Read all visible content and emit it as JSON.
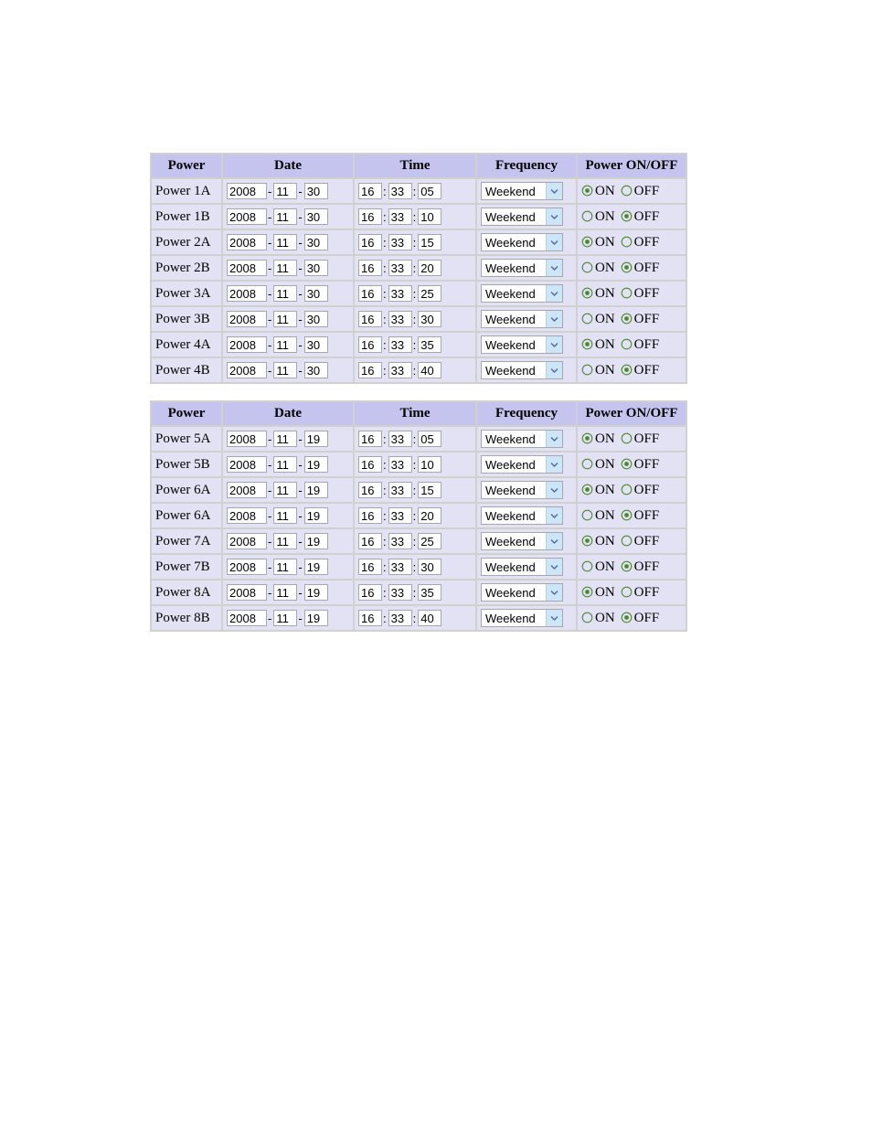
{
  "colors": {
    "header_bg": "#c5c4ee",
    "row_bg": "#e3e2f4",
    "table_border": "#d0d0cf",
    "input_border": "#a7a6aa",
    "select_button_bg": "#cde6f7",
    "radio_color": "#4a8a30",
    "page_bg": "#ffffff"
  },
  "headers": {
    "power": "Power",
    "date": "Date",
    "time": "Time",
    "frequency": "Frequency",
    "onoff": "Power ON/OFF"
  },
  "labels": {
    "on": "ON",
    "off": "OFF",
    "date_sep": "-",
    "time_sep": ":"
  },
  "frequency_selected": "Weekend",
  "tables": [
    {
      "rows": [
        {
          "name": "Power 1A",
          "year": "2008",
          "month": "11",
          "day": "30",
          "hh": "16",
          "mm": "33",
          "ss": "05",
          "freq": "Weekend",
          "state": "ON"
        },
        {
          "name": "Power 1B",
          "year": "2008",
          "month": "11",
          "day": "30",
          "hh": "16",
          "mm": "33",
          "ss": "10",
          "freq": "Weekend",
          "state": "OFF"
        },
        {
          "name": "Power 2A",
          "year": "2008",
          "month": "11",
          "day": "30",
          "hh": "16",
          "mm": "33",
          "ss": "15",
          "freq": "Weekend",
          "state": "ON"
        },
        {
          "name": "Power 2B",
          "year": "2008",
          "month": "11",
          "day": "30",
          "hh": "16",
          "mm": "33",
          "ss": "20",
          "freq": "Weekend",
          "state": "OFF"
        },
        {
          "name": "Power 3A",
          "year": "2008",
          "month": "11",
          "day": "30",
          "hh": "16",
          "mm": "33",
          "ss": "25",
          "freq": "Weekend",
          "state": "ON"
        },
        {
          "name": "Power 3B",
          "year": "2008",
          "month": "11",
          "day": "30",
          "hh": "16",
          "mm": "33",
          "ss": "30",
          "freq": "Weekend",
          "state": "OFF"
        },
        {
          "name": "Power 4A",
          "year": "2008",
          "month": "11",
          "day": "30",
          "hh": "16",
          "mm": "33",
          "ss": "35",
          "freq": "Weekend",
          "state": "ON"
        },
        {
          "name": "Power 4B",
          "year": "2008",
          "month": "11",
          "day": "30",
          "hh": "16",
          "mm": "33",
          "ss": "40",
          "freq": "Weekend",
          "state": "OFF"
        }
      ]
    },
    {
      "rows": [
        {
          "name": "Power 5A",
          "year": "2008",
          "month": "11",
          "day": "19",
          "hh": "16",
          "mm": "33",
          "ss": "05",
          "freq": "Weekend",
          "state": "ON"
        },
        {
          "name": "Power 5B",
          "year": "2008",
          "month": "11",
          "day": "19",
          "hh": "16",
          "mm": "33",
          "ss": "10",
          "freq": "Weekend",
          "state": "OFF"
        },
        {
          "name": "Power 6A",
          "year": "2008",
          "month": "11",
          "day": "19",
          "hh": "16",
          "mm": "33",
          "ss": "15",
          "freq": "Weekend",
          "state": "ON"
        },
        {
          "name": "Power 6A",
          "year": "2008",
          "month": "11",
          "day": "19",
          "hh": "16",
          "mm": "33",
          "ss": "20",
          "freq": "Weekend",
          "state": "OFF"
        },
        {
          "name": "Power 7A",
          "year": "2008",
          "month": "11",
          "day": "19",
          "hh": "16",
          "mm": "33",
          "ss": "25",
          "freq": "Weekend",
          "state": "ON"
        },
        {
          "name": "Power 7B",
          "year": "2008",
          "month": "11",
          "day": "19",
          "hh": "16",
          "mm": "33",
          "ss": "30",
          "freq": "Weekend",
          "state": "OFF"
        },
        {
          "name": "Power 8A",
          "year": "2008",
          "month": "11",
          "day": "19",
          "hh": "16",
          "mm": "33",
          "ss": "35",
          "freq": "Weekend",
          "state": "ON"
        },
        {
          "name": "Power 8B",
          "year": "2008",
          "month": "11",
          "day": "19",
          "hh": "16",
          "mm": "33",
          "ss": "40",
          "freq": "Weekend",
          "state": "OFF"
        }
      ]
    }
  ]
}
